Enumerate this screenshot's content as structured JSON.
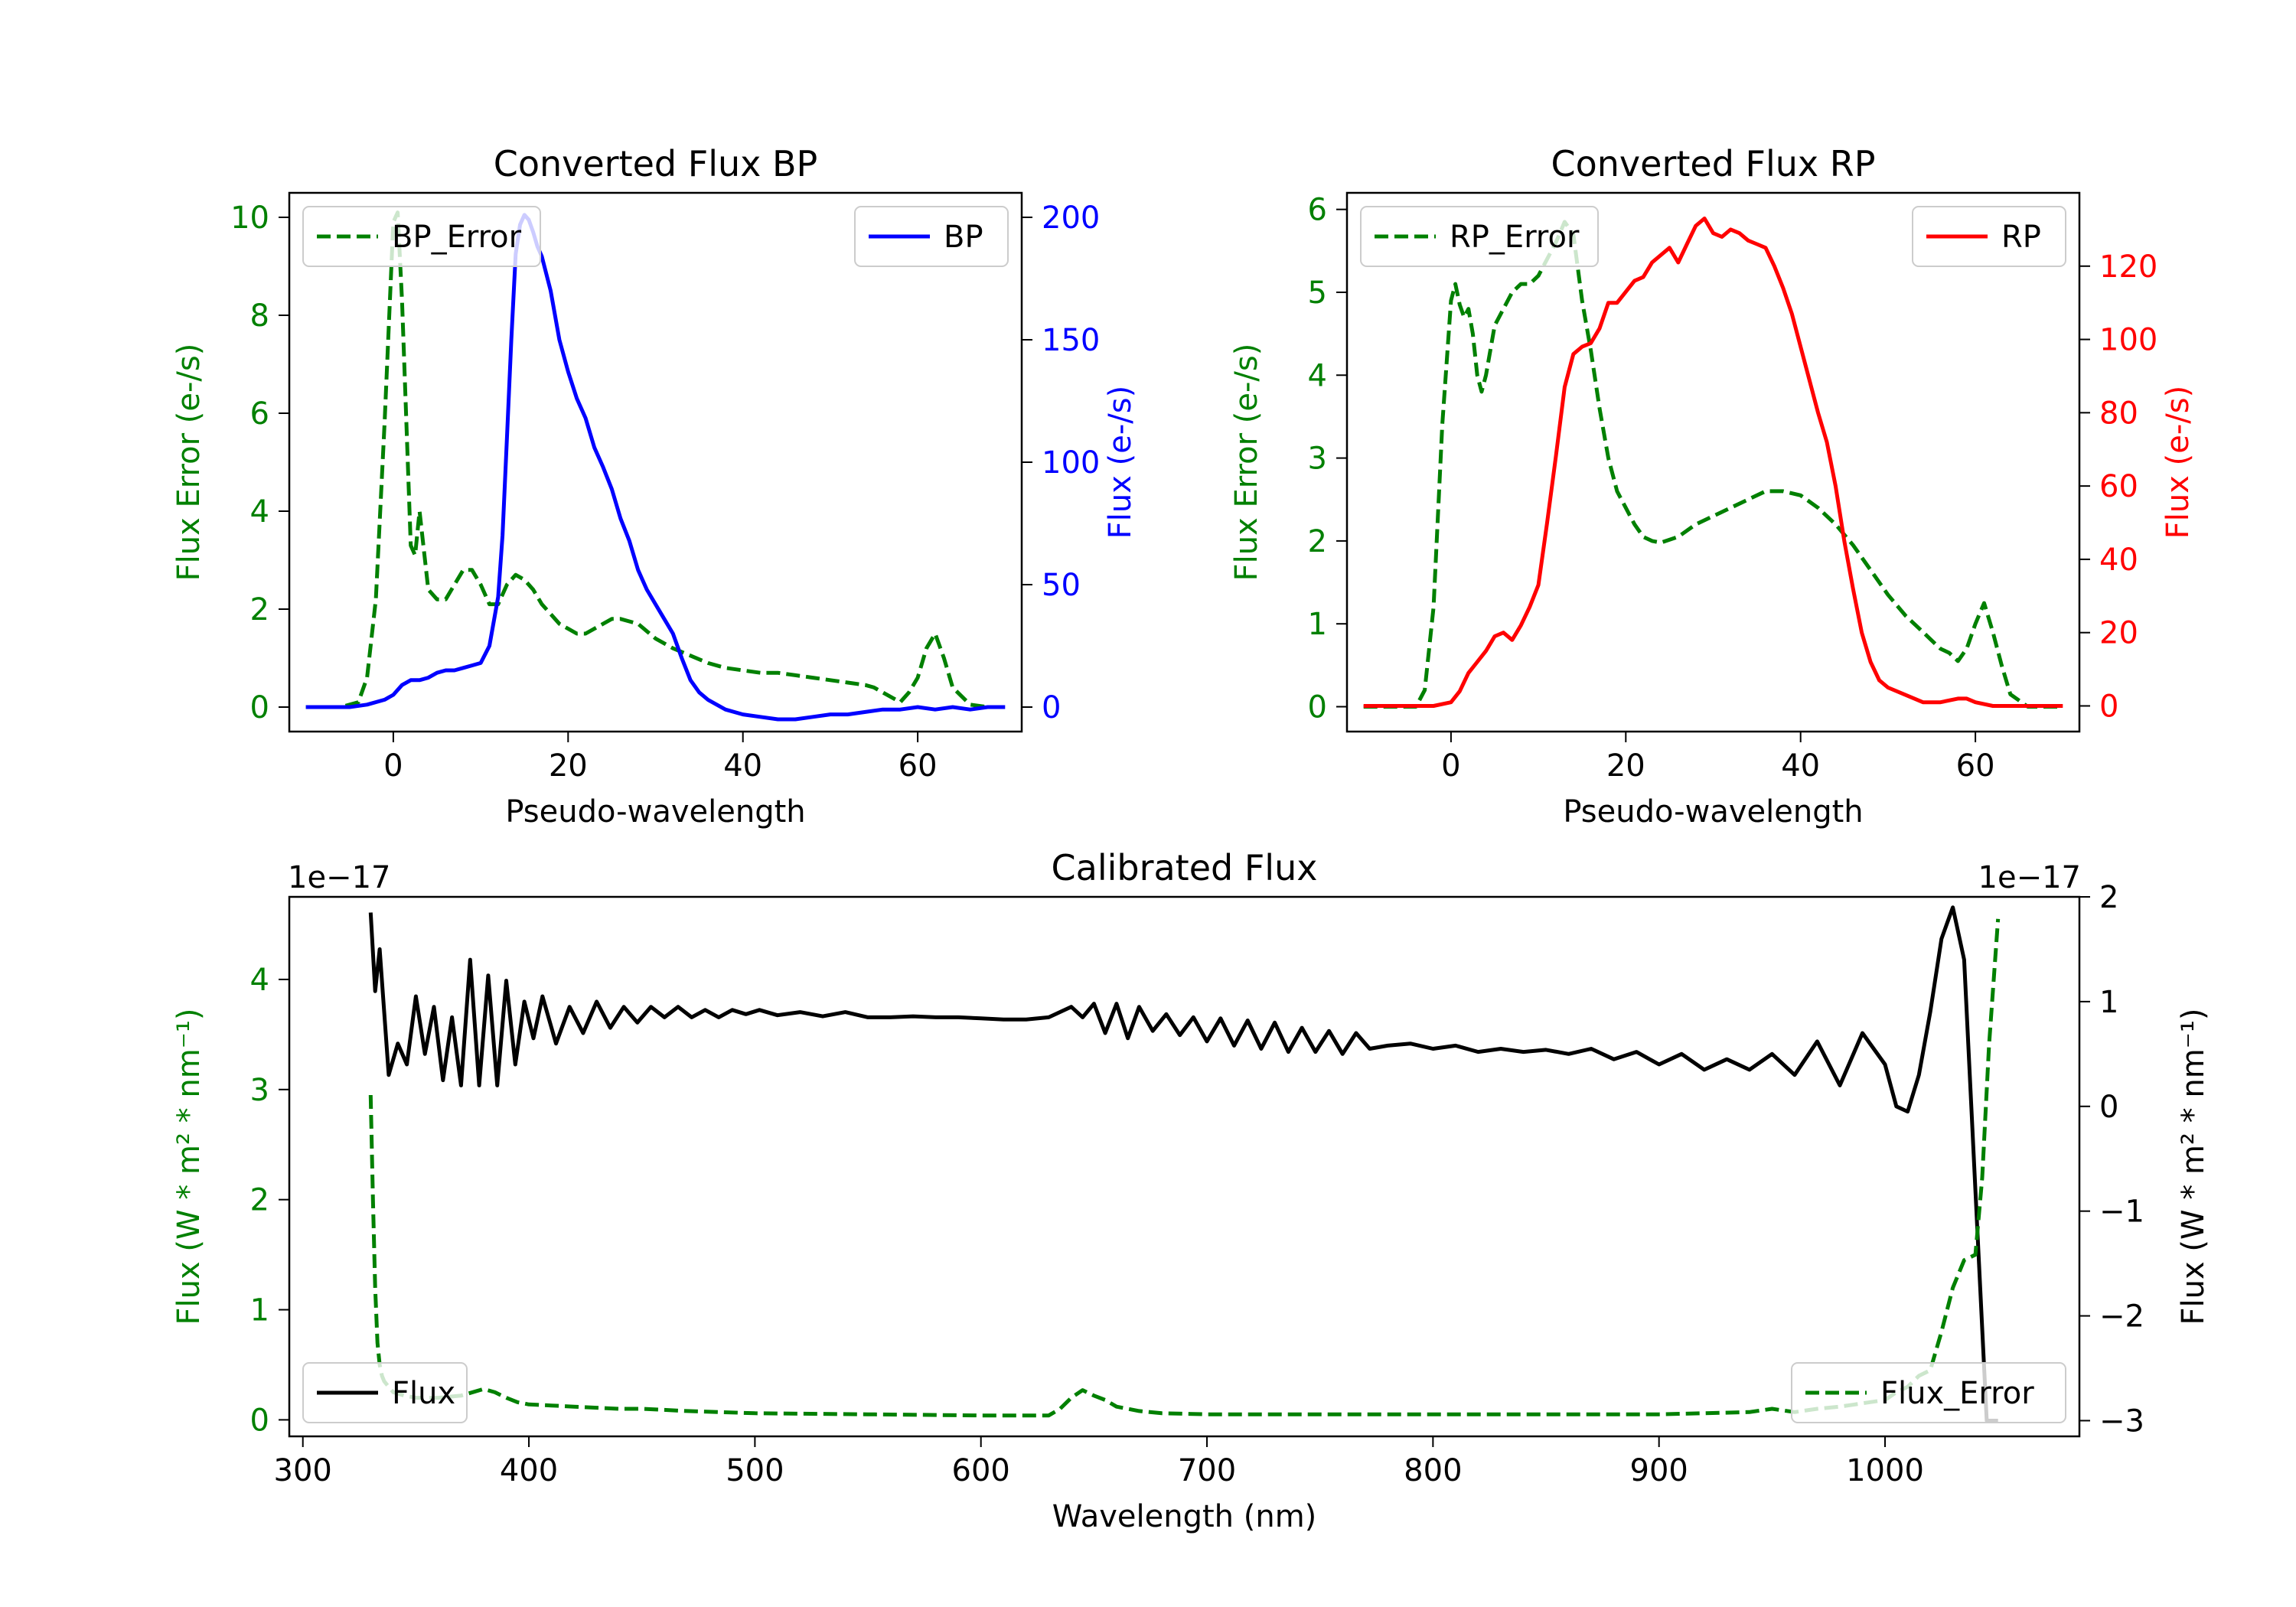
{
  "chart_data": [
    {
      "type": "line",
      "title": "Converted Flux BP",
      "xlabel": "Pseudo-wavelength",
      "xlim": [
        -11.9,
        71.9
      ],
      "xticks": [
        0,
        20,
        40,
        60
      ],
      "left_axis": {
        "label": "Flux Error (e-/s)",
        "color": "#008000",
        "ylim": [
          -0.5,
          10.5
        ],
        "ticks": [
          0,
          2,
          4,
          6,
          8,
          10
        ]
      },
      "right_axis": {
        "label": "Flux (e-/s)",
        "color": "#0000ff",
        "ylim": [
          -10,
          210
        ],
        "ticks": [
          0,
          50,
          100,
          150,
          200
        ]
      },
      "legend_left": {
        "position": "upper left",
        "label": "BP_Error"
      },
      "legend_right": {
        "position": "upper right",
        "label": "BP"
      },
      "series": [
        {
          "name": "BP_Error",
          "axis": "left",
          "color": "#008000",
          "style": "dashed",
          "x": [
            -10,
            -6,
            -4,
            -3,
            -2,
            -1,
            0,
            0.5,
            1,
            1.5,
            2,
            2.5,
            3,
            3.5,
            4,
            5,
            6,
            7,
            8,
            9,
            10,
            11,
            12,
            13,
            14,
            15,
            16,
            17,
            18,
            19,
            20,
            21,
            22,
            23,
            24,
            25,
            26,
            27,
            28,
            29,
            30,
            32,
            34,
            36,
            38,
            40,
            42,
            44,
            46,
            48,
            50,
            52,
            54,
            55,
            56,
            57,
            58,
            59,
            60,
            61,
            62,
            63,
            64,
            66,
            68,
            70
          ],
          "y": [
            0,
            0,
            0.1,
            0.6,
            2.2,
            5.8,
            9.9,
            10.1,
            8.3,
            5.8,
            3.3,
            3.1,
            4.0,
            3.2,
            2.4,
            2.2,
            2.2,
            2.5,
            2.8,
            2.8,
            2.5,
            2.1,
            2.1,
            2.5,
            2.7,
            2.6,
            2.4,
            2.1,
            1.9,
            1.7,
            1.6,
            1.5,
            1.5,
            1.6,
            1.7,
            1.8,
            1.8,
            1.75,
            1.7,
            1.55,
            1.4,
            1.2,
            1.05,
            0.9,
            0.8,
            0.75,
            0.7,
            0.7,
            0.65,
            0.6,
            0.55,
            0.5,
            0.45,
            0.4,
            0.3,
            0.2,
            0.1,
            0.3,
            0.6,
            1.2,
            1.5,
            1.0,
            0.4,
            0.05,
            0,
            0
          ]
        },
        {
          "name": "BP",
          "axis": "right",
          "color": "#0000ff",
          "style": "solid",
          "x": [
            -10,
            -5,
            -3,
            -1,
            0,
            1,
            2,
            3,
            4,
            5,
            6,
            7,
            8,
            9,
            10,
            11,
            12,
            12.5,
            13,
            13.5,
            14,
            14.5,
            15,
            15.5,
            16,
            16.5,
            17,
            18,
            19,
            20,
            21,
            22,
            23,
            24,
            25,
            26,
            27,
            28,
            29,
            30,
            31,
            32,
            33,
            34,
            35,
            36,
            38,
            40,
            42,
            44,
            46,
            48,
            50,
            52,
            54,
            56,
            58,
            60,
            62,
            64,
            66,
            68,
            70
          ],
          "y": [
            0,
            0,
            1,
            3,
            5,
            9,
            11,
            11,
            12,
            14,
            15,
            15,
            16,
            17,
            18,
            25,
            45,
            70,
            110,
            150,
            185,
            197,
            201,
            199,
            194,
            188,
            184,
            170,
            150,
            137,
            126,
            118,
            106,
            98,
            89,
            77,
            68,
            56,
            48,
            42,
            36,
            30,
            20,
            11,
            6,
            3,
            -1,
            -3,
            -4,
            -5,
            -5,
            -4,
            -3,
            -3,
            -2,
            -1,
            -1,
            0,
            -1,
            0,
            -1,
            0,
            0
          ]
        }
      ]
    },
    {
      "type": "line",
      "title": "Converted Flux RP",
      "xlabel": "Pseudo-wavelength",
      "xlim": [
        -11.9,
        71.9
      ],
      "xticks": [
        0,
        20,
        40,
        60
      ],
      "left_axis": {
        "label": "Flux Error (e-/s)",
        "color": "#008000",
        "ylim": [
          -0.3,
          6.2
        ],
        "ticks": [
          0,
          1,
          2,
          3,
          4,
          5,
          6
        ]
      },
      "right_axis": {
        "label": "Flux (e-/s)",
        "color": "#ff0000",
        "ylim": [
          -7,
          140
        ],
        "ticks": [
          0,
          20,
          40,
          60,
          80,
          100,
          120
        ]
      },
      "legend_left": {
        "position": "upper left",
        "label": "RP_Error"
      },
      "legend_right": {
        "position": "upper right",
        "label": "RP"
      },
      "series": [
        {
          "name": "RP_Error",
          "axis": "left",
          "color": "#008000",
          "style": "dashed",
          "x": [
            -10,
            -4,
            -3,
            -2,
            -1,
            0,
            0.5,
            1,
            1.5,
            2,
            2.5,
            3,
            3.5,
            4,
            4.5,
            5,
            6,
            7,
            8,
            9,
            10,
            11,
            12,
            13,
            14,
            15,
            16,
            17,
            18,
            19,
            20,
            21,
            22,
            23,
            24,
            26,
            28,
            30,
            32,
            34,
            36,
            38,
            40,
            42,
            44,
            46,
            48,
            50,
            52,
            54,
            55,
            56,
            57,
            58,
            59,
            60,
            61,
            62,
            63,
            64,
            66,
            70
          ],
          "y": [
            0,
            0,
            0.2,
            1.2,
            3.4,
            4.9,
            5.1,
            4.85,
            4.7,
            4.8,
            4.5,
            4.0,
            3.8,
            4.0,
            4.3,
            4.6,
            4.8,
            5.0,
            5.1,
            5.1,
            5.2,
            5.4,
            5.6,
            5.85,
            5.7,
            4.9,
            4.3,
            3.6,
            3.0,
            2.6,
            2.4,
            2.2,
            2.05,
            2.0,
            1.98,
            2.05,
            2.2,
            2.3,
            2.4,
            2.5,
            2.6,
            2.6,
            2.55,
            2.4,
            2.2,
            1.95,
            1.65,
            1.35,
            1.1,
            0.9,
            0.8,
            0.7,
            0.65,
            0.55,
            0.7,
            1.0,
            1.25,
            0.9,
            0.5,
            0.15,
            0,
            0
          ]
        },
        {
          "name": "RP",
          "axis": "right",
          "color": "#ff0000",
          "style": "solid",
          "x": [
            -10,
            -2,
            0,
            1,
            2,
            3,
            4,
            5,
            6,
            7,
            8,
            9,
            10,
            11,
            12,
            13,
            14,
            15,
            16,
            17,
            18,
            19,
            20,
            21,
            22,
            23,
            24,
            25,
            26,
            27,
            28,
            29,
            30,
            31,
            32,
            33,
            34,
            35,
            36,
            37,
            38,
            39,
            40,
            41,
            42,
            43,
            44,
            45,
            46,
            47,
            48,
            49,
            50,
            52,
            54,
            56,
            58,
            59,
            60,
            62,
            64,
            66,
            70
          ],
          "y": [
            0,
            0,
            1,
            4,
            9,
            12,
            15,
            19,
            20,
            18,
            22,
            27,
            33,
            50,
            68,
            87,
            96,
            98,
            99,
            103,
            110,
            110,
            113,
            116,
            117,
            121,
            123,
            125,
            121,
            126,
            131,
            133,
            129,
            128,
            130,
            129,
            127,
            126,
            125,
            120,
            114,
            107,
            98,
            89,
            80,
            72,
            60,
            45,
            32,
            20,
            12,
            7,
            5,
            3,
            1,
            1,
            2,
            2,
            1,
            0,
            0,
            0,
            0
          ]
        }
      ]
    },
    {
      "type": "line",
      "title": "Calibrated Flux",
      "xlabel": "Wavelength (nm)",
      "xlim": [
        294,
        1086
      ],
      "xticks": [
        300,
        400,
        500,
        600,
        700,
        800,
        900,
        1000
      ],
      "left_axis": {
        "label": "Flux (W * m² * nm⁻¹)",
        "color": "#008000",
        "offset_label": "1e−17",
        "ylim": [
          -0.15,
          4.75
        ],
        "ticks": [
          0,
          1,
          2,
          3,
          4
        ]
      },
      "right_axis": {
        "label": "Flux (W * m² * nm⁻¹)",
        "color": "#000000",
        "offset_label": "1e−17",
        "ylim": [
          -3.15,
          2.0
        ],
        "ticks": [
          -3,
          -2,
          -1,
          0,
          1,
          2
        ]
      },
      "legend_left": {
        "position": "lower left",
        "label": "Flux"
      },
      "legend_right": {
        "position": "lower right",
        "label": "Flux_Error"
      },
      "series": [
        {
          "name": "Flux",
          "axis": "right",
          "color": "#000000",
          "style": "solid",
          "x": [
            330,
            332,
            334,
            336,
            338,
            342,
            346,
            350,
            354,
            358,
            362,
            366,
            370,
            374,
            378,
            382,
            386,
            390,
            394,
            398,
            402,
            406,
            412,
            418,
            424,
            430,
            436,
            442,
            448,
            454,
            460,
            466,
            472,
            478,
            484,
            490,
            496,
            502,
            510,
            520,
            530,
            540,
            550,
            560,
            570,
            580,
            590,
            600,
            610,
            620,
            630,
            640,
            645,
            650,
            655,
            660,
            665,
            670,
            676,
            682,
            688,
            694,
            700,
            706,
            712,
            718,
            724,
            730,
            736,
            742,
            748,
            754,
            760,
            766,
            772,
            780,
            790,
            800,
            810,
            820,
            830,
            840,
            850,
            860,
            870,
            880,
            890,
            900,
            910,
            920,
            930,
            940,
            950,
            960,
            970,
            980,
            990,
            1000,
            1005,
            1010,
            1015,
            1020,
            1025,
            1030,
            1035,
            1040,
            1045,
            1050
          ],
          "y": [
            1.85,
            1.1,
            1.5,
            0.9,
            0.3,
            0.6,
            0.4,
            1.05,
            0.5,
            0.95,
            0.25,
            0.85,
            0.2,
            1.4,
            0.2,
            1.25,
            0.2,
            1.2,
            0.4,
            1.0,
            0.65,
            1.05,
            0.6,
            0.95,
            0.7,
            1.0,
            0.75,
            0.95,
            0.8,
            0.95,
            0.85,
            0.95,
            0.85,
            0.92,
            0.85,
            0.92,
            0.88,
            0.92,
            0.87,
            0.9,
            0.86,
            0.9,
            0.85,
            0.85,
            0.86,
            0.85,
            0.85,
            0.84,
            0.83,
            0.83,
            0.85,
            0.95,
            0.85,
            0.98,
            0.7,
            0.98,
            0.65,
            0.95,
            0.72,
            0.88,
            0.68,
            0.85,
            0.62,
            0.84,
            0.58,
            0.82,
            0.55,
            0.8,
            0.52,
            0.75,
            0.52,
            0.72,
            0.5,
            0.7,
            0.55,
            0.58,
            0.6,
            0.55,
            0.58,
            0.52,
            0.55,
            0.52,
            0.54,
            0.5,
            0.55,
            0.45,
            0.52,
            0.4,
            0.5,
            0.35,
            0.45,
            0.35,
            0.5,
            0.3,
            0.62,
            0.2,
            0.7,
            0.4,
            0.0,
            -0.05,
            0.3,
            0.9,
            1.6,
            1.9,
            1.4,
            -0.8,
            -3.0,
            -3.0
          ],
          "note": "right-axis values in units of 1e-17"
        },
        {
          "name": "Flux_Error",
          "axis": "left",
          "color": "#008000",
          "style": "dashed",
          "x": [
            330,
            331,
            332,
            333,
            334,
            335,
            336,
            338,
            340,
            345,
            350,
            360,
            370,
            380,
            385,
            390,
            395,
            400,
            410,
            420,
            430,
            440,
            450,
            470,
            500,
            550,
            600,
            630,
            635,
            640,
            645,
            650,
            655,
            660,
            670,
            680,
            700,
            750,
            800,
            850,
            900,
            940,
            950,
            960,
            970,
            980,
            990,
            1000,
            1005,
            1010,
            1015,
            1020,
            1025,
            1030,
            1035,
            1040,
            1043,
            1046,
            1050
          ],
          "y": [
            2.95,
            2.0,
            1.2,
            0.7,
            0.5,
            0.4,
            0.35,
            0.3,
            0.25,
            0.22,
            0.2,
            0.2,
            0.22,
            0.28,
            0.25,
            0.2,
            0.16,
            0.14,
            0.13,
            0.12,
            0.11,
            0.1,
            0.1,
            0.08,
            0.06,
            0.05,
            0.04,
            0.04,
            0.1,
            0.2,
            0.27,
            0.22,
            0.18,
            0.12,
            0.08,
            0.06,
            0.05,
            0.05,
            0.05,
            0.05,
            0.05,
            0.07,
            0.1,
            0.07,
            0.1,
            0.12,
            0.15,
            0.18,
            0.25,
            0.3,
            0.4,
            0.45,
            0.8,
            1.2,
            1.45,
            1.5,
            2.2,
            3.4,
            4.55
          ],
          "note": "left-axis values in units of 1e-17"
        }
      ]
    }
  ]
}
